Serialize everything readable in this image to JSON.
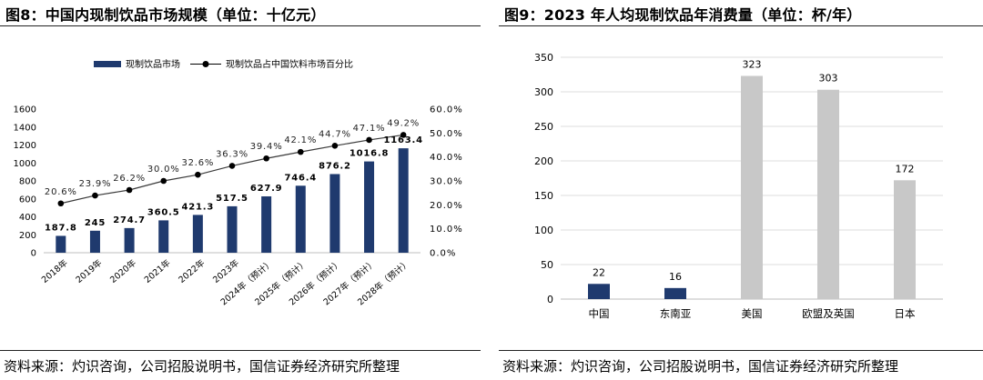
{
  "colors": {
    "navy": "#1f3a6e",
    "gray_bar": "#c8c8c8",
    "line": "#3a3a3a",
    "tick": "#555555"
  },
  "left_panel": {
    "title": "图8：中国内现制饮品市场规模（单位：十亿元）",
    "source": "资料来源：灼识咨询，公司招股说明书，国信证券经济研究所整理"
  },
  "right_panel": {
    "title": "图9：2023 年人均现制饮品年消费量（单位：杯/年）",
    "source": "资料来源：灼识咨询，公司招股说明书，国信证券经济研究所整理"
  },
  "chart_data": [
    {
      "type": "bar",
      "title": "图8：中国内现制饮品市场规模（单位：十亿元）",
      "categories": [
        "2018年",
        "2019年",
        "2020年",
        "2021年",
        "2022年",
        "2023年",
        "2024年（预计）",
        "2025年（预计）",
        "2026年（预计）",
        "2027年（预计）",
        "2028年（预计）"
      ],
      "series": [
        {
          "name": "现制饮品市场",
          "type": "bar",
          "axis": "left",
          "values": [
            187.8,
            245,
            274.7,
            360.5,
            421.3,
            517.5,
            627.9,
            746.4,
            876.2,
            1016.8,
            1163.4
          ],
          "labels": [
            "187.8",
            "245",
            "274.7",
            "360.5",
            "421.3",
            "517.5",
            "627.9",
            "746.4",
            "876.2",
            "1016.8",
            "1163.4"
          ]
        },
        {
          "name": "现制饮品占中国饮料市场百分比",
          "type": "line",
          "axis": "right",
          "values": [
            20.6,
            23.9,
            26.2,
            30.0,
            32.6,
            36.3,
            39.4,
            42.1,
            44.7,
            47.1,
            49.2
          ],
          "labels": [
            "20.6%",
            "23.9%",
            "26.2%",
            "30.0%",
            "32.6%",
            "36.3%",
            "39.4%",
            "42.1%",
            "44.7%",
            "47.1%",
            "49.2%"
          ]
        }
      ],
      "y_left": {
        "min": 0,
        "max": 1600,
        "ticks": [
          "0",
          "200",
          "400",
          "600",
          "800",
          "1000",
          "1200",
          "1400",
          "1600"
        ]
      },
      "y_right": {
        "min": 0,
        "max": 60,
        "ticks": [
          "0.0%",
          "10.0%",
          "20.0%",
          "30.0%",
          "40.0%",
          "50.0%",
          "60.0%"
        ]
      },
      "legend_position": "top-center",
      "grid": false
    },
    {
      "type": "bar",
      "title": "图9：2023 年人均现制饮品年消费量（单位：杯/年）",
      "categories": [
        "中国",
        "东南亚",
        "美国",
        "欧盟及英国",
        "日本"
      ],
      "values": [
        22,
        16,
        323,
        303,
        172
      ],
      "labels": [
        "22",
        "16",
        "323",
        "303",
        "172"
      ],
      "bar_colors": [
        "#1f3a6e",
        "#1f3a6e",
        "#c8c8c8",
        "#c8c8c8",
        "#c8c8c8"
      ],
      "ylim": [
        0,
        350
      ],
      "y_ticks": [
        "0",
        "50",
        "100",
        "150",
        "200",
        "250",
        "300",
        "350"
      ],
      "grid": true
    }
  ]
}
